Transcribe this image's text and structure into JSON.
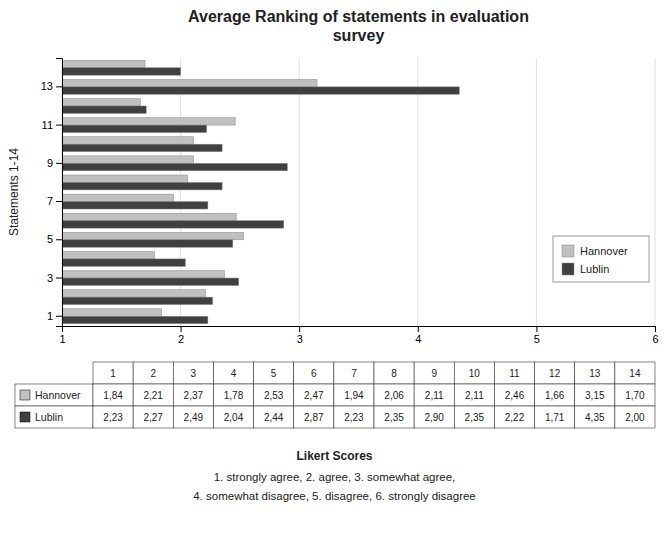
{
  "chart_data": {
    "type": "bar",
    "orientation": "horizontal",
    "title": "Average Ranking of statements in evaluation\nsurvey",
    "y_label": "Statements 1-14",
    "categories": [
      "1",
      null,
      "3",
      null,
      "5",
      null,
      "7",
      null,
      "9",
      null,
      "11",
      null,
      "13",
      null
    ],
    "series": [
      {
        "name": "Hannover",
        "color": "#c0c0c0",
        "values": [
          1.84,
          2.21,
          2.37,
          1.78,
          2.53,
          2.47,
          1.94,
          2.06,
          2.11,
          2.11,
          2.46,
          1.66,
          3.15,
          1.7
        ],
        "value_labels": [
          "1,84",
          "2,21",
          "2,37",
          "1,78",
          "2,53",
          "2,47",
          "1,94",
          "2,06",
          "2,11",
          "2,11",
          "2,46",
          "1,66",
          "3,15",
          "1,70"
        ]
      },
      {
        "name": "Lublin",
        "color": "#404040",
        "values": [
          2.23,
          2.27,
          2.49,
          2.04,
          2.44,
          2.87,
          2.23,
          2.35,
          2.9,
          2.35,
          2.22,
          1.71,
          4.35,
          2.0
        ],
        "value_labels": [
          "2,23",
          "2,27",
          "2,49",
          "2,04",
          "2,44",
          "2,87",
          "2,23",
          "2,35",
          "2,90",
          "2,35",
          "2,22",
          "1,71",
          "4,35",
          "2,00"
        ]
      }
    ],
    "xlim": [
      1,
      6
    ],
    "xticks": [
      1,
      2,
      3,
      4,
      5,
      6
    ],
    "grid": true,
    "legend": "lower right",
    "table": {
      "columns": [
        "1",
        "2",
        "3",
        "4",
        "5",
        "6",
        "7",
        "8",
        "9",
        "10",
        "11",
        "12",
        "13",
        "14"
      ]
    },
    "annotations": [
      "Likert Scores",
      "1. strongly agree, 2. agree, 3. somewhat agree,",
      "4. somewhat disagree, 5. disagree, 6. strongly disagree"
    ]
  }
}
